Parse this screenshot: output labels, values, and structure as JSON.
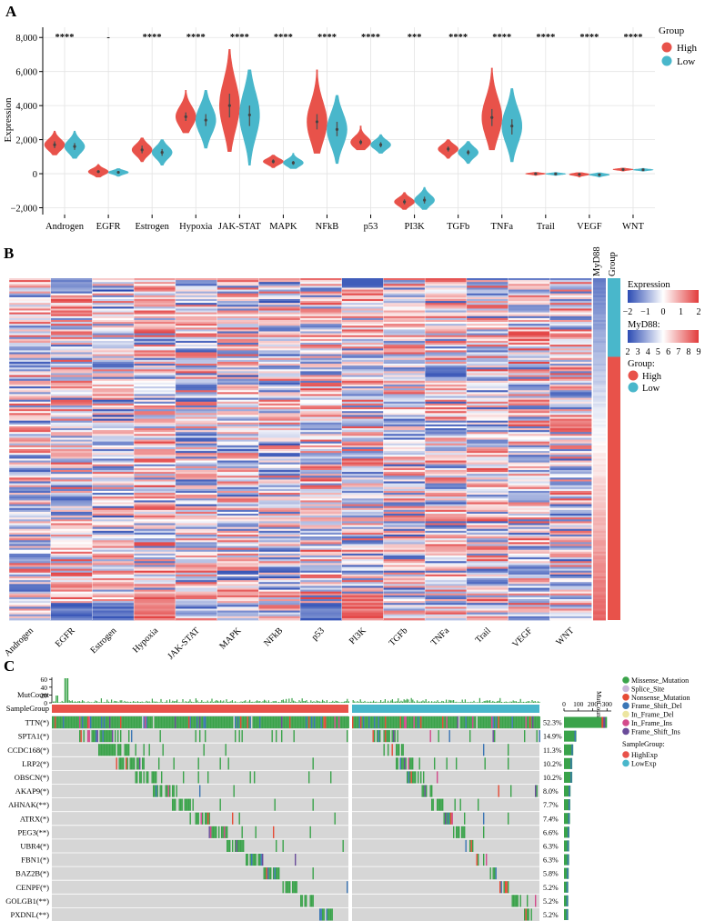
{
  "panel_a": {
    "label": "A",
    "legend_title": "Group",
    "groups": [
      {
        "name": "High",
        "color": "#e8524a"
      },
      {
        "name": "Low",
        "color": "#49b7cb"
      }
    ]
  },
  "panel_b": {
    "label": "B",
    "col_headers": [
      "MyD88",
      "Group"
    ],
    "legend": {
      "expression_title": "Expression",
      "expression_ticks": [
        "−2",
        "−1",
        "0",
        "1",
        "2"
      ],
      "myd88_title": "MyD88:",
      "myd88_ticks": [
        "2",
        "3",
        "4",
        "5",
        "6",
        "7",
        "8",
        "9"
      ],
      "group_title": "Group:",
      "group_items": [
        "High",
        "Low"
      ]
    },
    "low_fraction": 0.23
  },
  "panel_c": {
    "label": "C",
    "mutcount_label": "MutCount",
    "mutcount_ticks": [
      "0",
      "20",
      "40",
      "60"
    ],
    "samplegroup_label": "SampleGroup",
    "top_axis_title": "MutCount",
    "top_axis_ticks": [
      "0",
      "100",
      "200",
      "300"
    ],
    "variant_legend": [
      "Missense_Mutation",
      "Splice_Site",
      "Nonsense_Mutation",
      "Frame_Shift_Del",
      "In_Frame_Del",
      "In_Frame_Ins",
      "Frame_Shift_Ins"
    ],
    "variant_colors": [
      "#3aa34a",
      "#c9b6d8",
      "#e64b35",
      "#3b76b5",
      "#ece5a0",
      "#d44a8b",
      "#6a4c9a"
    ],
    "samplegroup_title": "SampleGroup:",
    "samplegroup_items": [
      "HighExp",
      "LowExp"
    ],
    "samplegroup_colors": [
      "#e8524a",
      "#49b7cb"
    ],
    "genes": [
      {
        "name": "TTN(*)",
        "pct": "52.3%",
        "count": 300
      },
      {
        "name": "SPTA1(*)",
        "pct": "14.9%",
        "count": 86
      },
      {
        "name": "CCDC168(*)",
        "pct": "11.3%",
        "count": 65
      },
      {
        "name": "LRP2(*)",
        "pct": "10.2%",
        "count": 58
      },
      {
        "name": "OBSCN(*)",
        "pct": "10.2%",
        "count": 58
      },
      {
        "name": "AKAP9(*)",
        "pct": "8.0%",
        "count": 46
      },
      {
        "name": "AHNAK(**)",
        "pct": "7.7%",
        "count": 44
      },
      {
        "name": "ATRX(*)",
        "pct": "7.4%",
        "count": 42
      },
      {
        "name": "PEG3(**)",
        "pct": "6.6%",
        "count": 38
      },
      {
        "name": "UBR4(*)",
        "pct": "6.3%",
        "count": 36
      },
      {
        "name": "FBN1(*)",
        "pct": "6.3%",
        "count": 36
      },
      {
        "name": "BAZ2B(*)",
        "pct": "5.8%",
        "count": 33
      },
      {
        "name": "CENPF(*)",
        "pct": "5.2%",
        "count": 30
      },
      {
        "name": "GOLGB1(**)",
        "pct": "5.2%",
        "count": 30
      },
      {
        "name": "PXDNL(**)",
        "pct": "5.2%",
        "count": 30
      }
    ]
  },
  "chart_data": [
    {
      "type": "violin",
      "title": "",
      "xlabel": "",
      "ylabel": "Expression",
      "ylim": [
        -2400,
        8600
      ],
      "yticks": [
        -2000,
        0,
        2000,
        4000,
        6000,
        8000
      ],
      "ytick_labels": [
        "−2,000",
        "0",
        "2,000",
        "4,000",
        "6,000",
        "8,000"
      ],
      "categories": [
        "Androgen",
        "EGFR",
        "Estrogen",
        "Hypoxia",
        "JAK-STAT",
        "MAPK",
        "NFkB",
        "p53",
        "PI3K",
        "TGFb",
        "TNFa",
        "Trail",
        "VEGF",
        "WNT"
      ],
      "significance": [
        "****",
        "-",
        "****",
        "****",
        "****",
        "****",
        "****",
        "****",
        "***",
        "****",
        "****",
        "****",
        "****",
        "****"
      ],
      "series": [
        {
          "name": "High",
          "median": [
            1700,
            120,
            1400,
            3350,
            4000,
            720,
            3050,
            1850,
            -1650,
            1450,
            3300,
            0,
            -40,
            250
          ],
          "min": [
            1100,
            -200,
            700,
            2400,
            1300,
            350,
            1200,
            1400,
            -2100,
            900,
            1400,
            -100,
            -200,
            150
          ],
          "max": [
            2500,
            550,
            2100,
            4900,
            7300,
            1100,
            6100,
            2800,
            -1100,
            2000,
            6200,
            80,
            60,
            330
          ],
          "q1": [
            1500,
            50,
            1200,
            3100,
            3300,
            600,
            2600,
            1700,
            -1800,
            1300,
            2800,
            -20,
            -80,
            220
          ],
          "q3": [
            1900,
            200,
            1650,
            3600,
            4700,
            850,
            3500,
            2000,
            -1500,
            1600,
            3800,
            20,
            0,
            280
          ]
        },
        {
          "name": "Low",
          "median": [
            1600,
            80,
            1250,
            3150,
            3450,
            640,
            2600,
            1700,
            -1550,
            1250,
            2800,
            -10,
            -60,
            230
          ],
          "min": [
            900,
            -150,
            500,
            1500,
            500,
            300,
            600,
            1200,
            -2100,
            600,
            700,
            -100,
            -200,
            150
          ],
          "max": [
            2500,
            300,
            2000,
            4900,
            6100,
            1200,
            4600,
            2300,
            -800,
            1900,
            5000,
            70,
            50,
            310
          ],
          "q1": [
            1400,
            20,
            1050,
            2800,
            2800,
            520,
            2200,
            1550,
            -1750,
            1100,
            2300,
            -30,
            -100,
            200
          ],
          "q3": [
            1800,
            150,
            1450,
            3500,
            4000,
            750,
            3050,
            1850,
            -1350,
            1400,
            3200,
            10,
            -20,
            260
          ]
        }
      ]
    },
    {
      "type": "heatmap",
      "title": "",
      "xlabel": "",
      "ylabel": "",
      "columns": [
        "Androgen",
        "EGFR",
        "Estrogen",
        "Hypoxia",
        "JAK-STAT",
        "MAPK",
        "NFkB",
        "p53",
        "PI3K",
        "TGFb",
        "TNFa",
        "Trail",
        "VEGF",
        "WNT"
      ],
      "value_range": [
        -2,
        2
      ],
      "myd88_range": [
        2,
        9
      ],
      "groups": [
        "Low",
        "High"
      ]
    },
    {
      "type": "bar",
      "title": "",
      "xlabel": "MutCount",
      "ylabel": "",
      "categories": [
        "TTN(*)",
        "SPTA1(*)",
        "CCDC168(*)",
        "LRP2(*)",
        "OBSCN(*)",
        "AKAP9(*)",
        "AHNAK(**)",
        "ATRX(*)",
        "PEG3(**)",
        "UBR4(*)",
        "FBN1(*)",
        "BAZ2B(*)",
        "CENPF(*)",
        "GOLGB1(**)",
        "PXDNL(**)"
      ],
      "values": [
        300,
        86,
        65,
        58,
        58,
        46,
        44,
        42,
        38,
        36,
        36,
        33,
        30,
        30,
        30
      ],
      "xlim": [
        0,
        330
      ]
    }
  ]
}
